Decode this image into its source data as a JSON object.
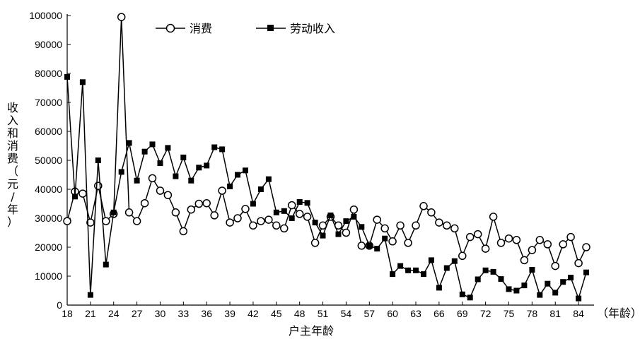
{
  "chart_data": {
    "type": "line",
    "xlabel": "户主年龄",
    "x_unit": "（年龄）",
    "ylabel": "收入和消费（元/年）",
    "xlim": [
      18,
      86
    ],
    "ylim": [
      0,
      100000
    ],
    "x_ticks": [
      18,
      21,
      24,
      27,
      30,
      33,
      36,
      39,
      42,
      45,
      48,
      51,
      54,
      57,
      60,
      63,
      66,
      69,
      72,
      75,
      78,
      81,
      84
    ],
    "y_ticks": [
      0,
      10000,
      20000,
      30000,
      40000,
      50000,
      60000,
      70000,
      80000,
      90000,
      100000
    ],
    "grid": false,
    "legend_position": "top",
    "x": [
      18,
      19,
      20,
      21,
      22,
      23,
      24,
      25,
      26,
      27,
      28,
      29,
      30,
      31,
      32,
      33,
      34,
      35,
      36,
      37,
      38,
      39,
      40,
      41,
      42,
      43,
      44,
      45,
      46,
      47,
      48,
      49,
      50,
      51,
      52,
      53,
      54,
      55,
      56,
      57,
      58,
      59,
      60,
      61,
      62,
      63,
      64,
      65,
      66,
      67,
      68,
      69,
      70,
      71,
      72,
      73,
      74,
      75,
      76,
      77,
      78,
      79,
      80,
      81,
      82,
      83,
      84,
      85,
      86
    ],
    "series": [
      {
        "name": "消费",
        "marker": "circle-open",
        "values": [
          29000,
          39200,
          38500,
          28500,
          41200,
          29000,
          31500,
          99500,
          32000,
          29000,
          35200,
          43800,
          39500,
          38000,
          32000,
          25500,
          33000,
          35000,
          35200,
          31000,
          39500,
          28500,
          30000,
          33200,
          27500,
          29000,
          29500,
          27500,
          26500,
          34500,
          31500,
          30500,
          21500,
          27500,
          30500,
          27500,
          25000,
          33000,
          20500,
          20500,
          29500,
          26500,
          22000,
          27500,
          21500,
          27500,
          34200,
          32000,
          28500,
          27500,
          26500,
          17000,
          23500,
          24500,
          19500,
          30500,
          21500,
          23000,
          22500,
          15500,
          19000,
          22500,
          21000,
          13500,
          21000,
          23500,
          14500,
          20000,
          null
        ],
        "color": "#000000"
      },
      {
        "name": "劳动收入",
        "marker": "square-filled",
        "values": [
          78800,
          37500,
          77000,
          3500,
          50000,
          14000,
          32000,
          46000,
          56000,
          43000,
          53000,
          55500,
          49000,
          54300,
          44500,
          51000,
          43000,
          47500,
          48200,
          54500,
          53800,
          41000,
          45000,
          46500,
          35000,
          40000,
          43500,
          32000,
          32500,
          30000,
          35600,
          35300,
          28500,
          24000,
          31000,
          24500,
          29000,
          30500,
          27000,
          20500,
          19500,
          23000,
          10700,
          13500,
          12000,
          12000,
          10700,
          15500,
          6000,
          12800,
          15200,
          3700,
          2600,
          8900,
          12000,
          11500,
          9000,
          5500,
          5000,
          6800,
          12200,
          3500,
          7400,
          4300,
          8000,
          9500,
          2300,
          11300,
          null
        ],
        "color": "#000000"
      }
    ]
  }
}
